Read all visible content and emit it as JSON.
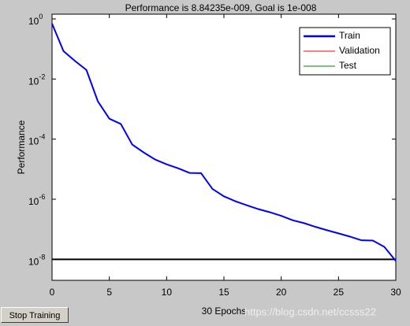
{
  "chart_data": {
    "type": "line",
    "title": "Performance is 8.84235e-009, Goal is 1e-008",
    "x_label": "30 Epochs",
    "y_label": "Performance",
    "log_y": true,
    "x": [
      0,
      1,
      2,
      3,
      4,
      5,
      6,
      7,
      8,
      9,
      10,
      11,
      12,
      13,
      14,
      15,
      16,
      17,
      18,
      19,
      20,
      21,
      22,
      23,
      24,
      25,
      26,
      27,
      28,
      29,
      30
    ],
    "series": [
      {
        "name": "Train",
        "color": "#0000ff",
        "values": [
          0.7,
          0.085,
          0.04,
          0.02,
          0.0018,
          0.00048,
          0.00032,
          6.6e-05,
          3.6e-05,
          2.1e-05,
          1.45e-05,
          1.07e-05,
          7.5e-06,
          7.4e-06,
          2.2e-06,
          1.25e-06,
          8.6e-07,
          6.3e-07,
          4.7e-07,
          3.7e-07,
          2.8e-07,
          2e-07,
          1.6e-07,
          1.2e-07,
          9.3e-08,
          7.3e-08,
          5.7e-08,
          4.3e-08,
          4.2e-08,
          2.6e-08,
          8.84235e-09
        ]
      },
      {
        "name": "Validation",
        "color": "#ff0000",
        "values": [
          null,
          null,
          null,
          null,
          null,
          null,
          null,
          null,
          null,
          null,
          null,
          null,
          null,
          null,
          null,
          null,
          null,
          null,
          null,
          null,
          null,
          null,
          null,
          null,
          null,
          null,
          null,
          null,
          null,
          null,
          null
        ]
      },
      {
        "name": "Test",
        "color": "#008000",
        "values": [
          null,
          null,
          null,
          null,
          null,
          null,
          null,
          null,
          null,
          null,
          null,
          null,
          null,
          null,
          null,
          null,
          null,
          null,
          null,
          null,
          null,
          null,
          null,
          null,
          null,
          null,
          null,
          null,
          null,
          null,
          null
        ]
      }
    ],
    "goal": 1e-08,
    "goal_color": "#000000",
    "xlim": [
      0,
      30
    ],
    "xticks": [
      0,
      5,
      10,
      15,
      20,
      25,
      30
    ],
    "ylim": [
      2e-09,
      1.44
    ],
    "yticks": [
      {
        "value": 1,
        "label": "10",
        "exponent": "0"
      },
      {
        "value": 0.01,
        "label": "10",
        "exponent": "-2"
      },
      {
        "value": 0.0001,
        "label": "10",
        "exponent": "-4"
      },
      {
        "value": 1e-06,
        "label": "10",
        "exponent": "-6"
      },
      {
        "value": 1e-08,
        "label": "10",
        "exponent": "-8"
      }
    ],
    "legend": "upper right"
  },
  "button": "Stop Training",
  "watermark": "https://blog.csdn.net/ccsss22"
}
